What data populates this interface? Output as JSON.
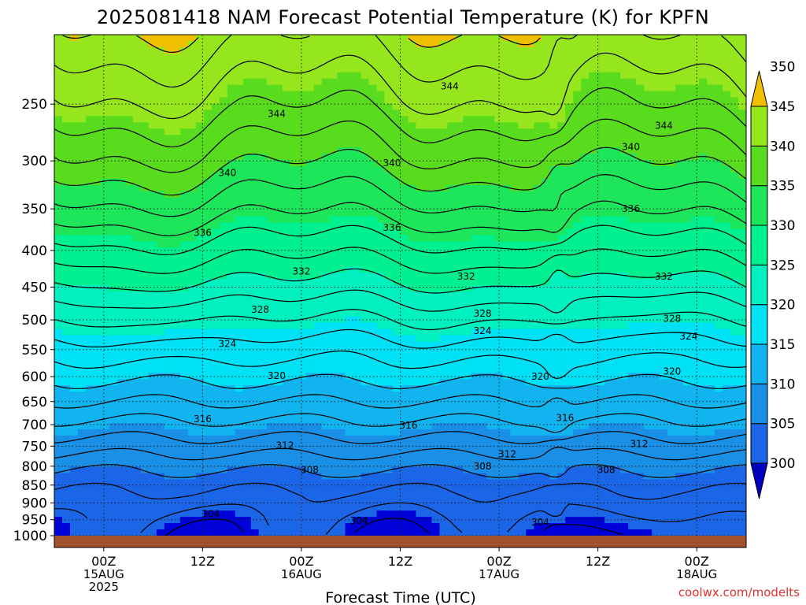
{
  "title": "2025081418 NAM Forecast Potential Temperature (K) for KPFN",
  "watermark": "coolwx.com/modelts",
  "chart_data": {
    "type": "heatmap",
    "title": "2025081418 NAM Forecast Potential Temperature (K) for KPFN",
    "xlabel": "Forecast Time (UTC)",
    "ylabel": "",
    "x_ticks": [
      {
        "hour": 6,
        "lines": [
          "00Z",
          "15AUG",
          "2025"
        ]
      },
      {
        "hour": 18,
        "lines": [
          "12Z"
        ]
      },
      {
        "hour": 30,
        "lines": [
          "00Z",
          "16AUG"
        ]
      },
      {
        "hour": 42,
        "lines": [
          "12Z"
        ]
      },
      {
        "hour": 54,
        "lines": [
          "00Z",
          "17AUG"
        ]
      },
      {
        "hour": 66,
        "lines": [
          "12Z"
        ]
      },
      {
        "hour": 78,
        "lines": [
          "00Z",
          "18AUG"
        ]
      }
    ],
    "xlim": [
      0,
      84
    ],
    "y_ticks": [
      250,
      300,
      350,
      400,
      450,
      500,
      550,
      600,
      650,
      700,
      750,
      800,
      850,
      900,
      950,
      1000
    ],
    "y_tick_labels": [
      "250",
      "300",
      "350",
      "400",
      "450",
      "500",
      "550",
      "600",
      "650",
      "700",
      "750",
      "800",
      "850",
      "900",
      "950",
      "1000"
    ],
    "ylim": [
      200,
      1000
    ],
    "y_scale": "log",
    "grid": "dotted",
    "colorbar": {
      "levels": [
        300,
        305,
        310,
        315,
        320,
        325,
        330,
        335,
        340,
        345,
        350
      ],
      "labels": [
        "300",
        "305",
        "310",
        "315",
        "320",
        "325",
        "330",
        "335",
        "340",
        "345",
        "350"
      ],
      "colors": [
        "#0000d8",
        "#1a66e6",
        "#1a8fe6",
        "#12b4f0",
        "#00e1f5",
        "#00f0c0",
        "#00f090",
        "#1ee65a",
        "#5adc1e",
        "#96e61e",
        "#f0f000"
      ],
      "below_color": "#0000c0",
      "above_color": "#f0c000"
    },
    "profile": {
      "pressure": [
        1000,
        950,
        900,
        850,
        800,
        750,
        700,
        650,
        600,
        550,
        500,
        450,
        400,
        350,
        300,
        250,
        200
      ],
      "theta": [
        304.5,
        305.5,
        307,
        308.5,
        310.5,
        313,
        315.5,
        318,
        320.5,
        323,
        326,
        329.5,
        333,
        337,
        341,
        345,
        349
      ]
    },
    "contour_levels": [
      300,
      302,
      304,
      306,
      308,
      310,
      312,
      314,
      316,
      318,
      320,
      322,
      324,
      326,
      328,
      330,
      332,
      334,
      336,
      338,
      340,
      342,
      344,
      346,
      348,
      350
    ],
    "contour_labels": [
      {
        "value": "344",
        "hour": 27,
        "p": 258
      },
      {
        "value": "344",
        "hour": 48,
        "p": 236
      },
      {
        "value": "344",
        "hour": 74,
        "p": 268
      },
      {
        "value": "340",
        "hour": 21,
        "p": 312
      },
      {
        "value": "340",
        "hour": 41,
        "p": 302
      },
      {
        "value": "340",
        "hour": 70,
        "p": 287
      },
      {
        "value": "336",
        "hour": 18,
        "p": 378
      },
      {
        "value": "336",
        "hour": 41,
        "p": 372
      },
      {
        "value": "336",
        "hour": 70,
        "p": 350
      },
      {
        "value": "332",
        "hour": 30,
        "p": 428
      },
      {
        "value": "332",
        "hour": 50,
        "p": 435
      },
      {
        "value": "332",
        "hour": 74,
        "p": 435
      },
      {
        "value": "328",
        "hour": 25,
        "p": 484
      },
      {
        "value": "328",
        "hour": 52,
        "p": 490
      },
      {
        "value": "328",
        "hour": 75,
        "p": 498
      },
      {
        "value": "324",
        "hour": 21,
        "p": 540
      },
      {
        "value": "324",
        "hour": 52,
        "p": 518
      },
      {
        "value": "324",
        "hour": 77,
        "p": 527
      },
      {
        "value": "320",
        "hour": 27,
        "p": 598
      },
      {
        "value": "320",
        "hour": 59,
        "p": 600
      },
      {
        "value": "320",
        "hour": 75,
        "p": 590
      },
      {
        "value": "316",
        "hour": 18,
        "p": 688
      },
      {
        "value": "316",
        "hour": 43,
        "p": 702
      },
      {
        "value": "316",
        "hour": 62,
        "p": 685
      },
      {
        "value": "312",
        "hour": 28,
        "p": 748
      },
      {
        "value": "312",
        "hour": 55,
        "p": 770
      },
      {
        "value": "312",
        "hour": 71,
        "p": 745
      },
      {
        "value": "308",
        "hour": 31,
        "p": 810
      },
      {
        "value": "308",
        "hour": 52,
        "p": 800
      },
      {
        "value": "308",
        "hour": 67,
        "p": 810
      },
      {
        "value": "304",
        "hour": 19,
        "p": 933
      },
      {
        "value": "304",
        "hour": 37,
        "p": 953
      },
      {
        "value": "304",
        "hour": 59,
        "p": 958
      }
    ]
  }
}
